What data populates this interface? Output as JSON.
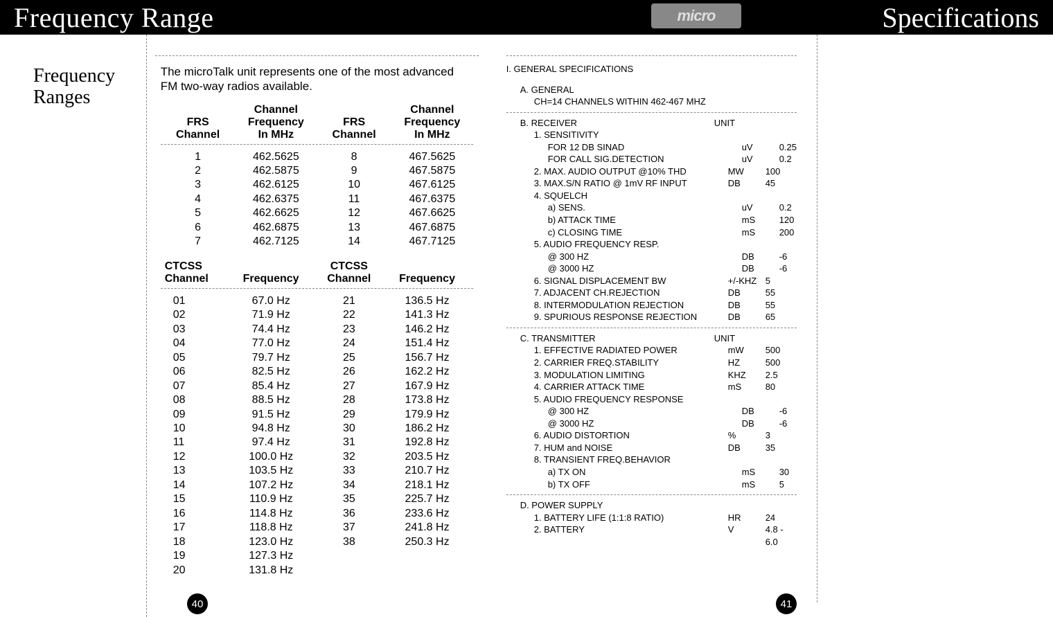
{
  "top": {
    "left_title": "Frequency Range",
    "right_title": "Specifications",
    "logo_text": "micro"
  },
  "left_heading": "Frequency\nRanges",
  "intro": "The microTalk unit represents one of the most advanced FM two-way radios available.",
  "frs_header": {
    "c1a": "FRS",
    "c1b": "Channel",
    "c2a": "Channel",
    "c2b": "Frequency",
    "c2c": "In MHz",
    "c3a": "FRS",
    "c3b": "Channel",
    "c4a": "Channel",
    "c4b": "Frequency",
    "c4c": "In MHz"
  },
  "frs_rows": [
    {
      "c1": "1",
      "c2": "462.5625",
      "c3": "8",
      "c4": "467.5625"
    },
    {
      "c1": "2",
      "c2": "462.5875",
      "c3": "9",
      "c4": "467.5875"
    },
    {
      "c1": "3",
      "c2": "462.6125",
      "c3": "10",
      "c4": "467.6125"
    },
    {
      "c1": "4",
      "c2": "462.6375",
      "c3": "11",
      "c4": "467.6375"
    },
    {
      "c1": "5",
      "c2": "462.6625",
      "c3": "12",
      "c4": "467.6625"
    },
    {
      "c1": "6",
      "c2": "462.6875",
      "c3": "13",
      "c4": "467.6875"
    },
    {
      "c1": "7",
      "c2": "462.7125",
      "c3": "14",
      "c4": "467.7125"
    }
  ],
  "ctcss_header": {
    "c1a": "CTCSS",
    "c1b": "Channel",
    "c2": "Frequency",
    "c3a": "CTCSS",
    "c3b": "Channel",
    "c4": "Frequency"
  },
  "ctcss_rows": [
    {
      "c1": "01",
      "c2": "67.0 Hz",
      "c3": "21",
      "c4": "136.5 Hz"
    },
    {
      "c1": "02",
      "c2": "71.9 Hz",
      "c3": "22",
      "c4": "141.3 Hz"
    },
    {
      "c1": "03",
      "c2": "74.4 Hz",
      "c3": "23",
      "c4": "146.2 Hz"
    },
    {
      "c1": "04",
      "c2": "77.0 Hz",
      "c3": "24",
      "c4": "151.4 Hz"
    },
    {
      "c1": "05",
      "c2": "79.7 Hz",
      "c3": "25",
      "c4": "156.7 Hz"
    },
    {
      "c1": "06",
      "c2": "82.5 Hz",
      "c3": "26",
      "c4": "162.2 Hz"
    },
    {
      "c1": "07",
      "c2": "85.4 Hz",
      "c3": "27",
      "c4": "167.9 Hz"
    },
    {
      "c1": "08",
      "c2": "88.5 Hz",
      "c3": "28",
      "c4": "173.8 Hz"
    },
    {
      "c1": "09",
      "c2": "91.5 Hz",
      "c3": "29",
      "c4": "179.9 Hz"
    },
    {
      "c1": "10",
      "c2": "94.8 Hz",
      "c3": "30",
      "c4": "186.2 Hz"
    },
    {
      "c1": "11",
      "c2": "97.4 Hz",
      "c3": "31",
      "c4": "192.8 Hz"
    },
    {
      "c1": "12",
      "c2": "100.0 Hz",
      "c3": "32",
      "c4": "203.5 Hz"
    },
    {
      "c1": "13",
      "c2": "103.5 Hz",
      "c3": "33",
      "c4": "210.7 Hz"
    },
    {
      "c1": "14",
      "c2": "107.2 Hz",
      "c3": "34",
      "c4": "218.1 Hz"
    },
    {
      "c1": "15",
      "c2": "110.9 Hz",
      "c3": "35",
      "c4": "225.7 Hz"
    },
    {
      "c1": "16",
      "c2": "114.8 Hz",
      "c3": "36",
      "c4": "233.6 Hz"
    },
    {
      "c1": "17",
      "c2": "118.8 Hz",
      "c3": "37",
      "c4": "241.8 Hz"
    },
    {
      "c1": "18",
      "c2": "123.0 Hz",
      "c3": "38",
      "c4": "250.3 Hz"
    },
    {
      "c1": "19",
      "c2": "127.3 Hz",
      "c3": "",
      "c4": ""
    },
    {
      "c1": "20",
      "c2": "131.8 Hz",
      "c3": "",
      "c4": ""
    }
  ],
  "specs": {
    "title": "I. GENERAL  SPECIFICATIONS",
    "A_title": "A. GENERAL",
    "A_line": "CH=14 CHANNELS WITHIN 462-467 MHZ",
    "B_title": "B. RECEIVER",
    "B_unit": "UNIT",
    "B_rows": [
      {
        "label": "1.  SENSITIVITY",
        "unit": "",
        "val": ""
      },
      {
        "label": "FOR 12 DB SINAD",
        "unit": "uV",
        "val": "0.25",
        "sub": true
      },
      {
        "label": "FOR CALL SIG.DETECTION",
        "unit": "uV",
        "val": "0.2",
        "sub": true
      },
      {
        "label": "2.  MAX. AUDIO OUTPUT @10% THD",
        "unit": "MW",
        "val": "100"
      },
      {
        "label": "3.  MAX.S/N  RATIO @ 1mV RF INPUT",
        "unit": "DB",
        "val": "45"
      },
      {
        "label": "4.  SQUELCH",
        "unit": "",
        "val": ""
      },
      {
        "label": "a) SENS.",
        "unit": "uV",
        "val": "0.2",
        "sub": true
      },
      {
        "label": "b) ATTACK TIME",
        "unit": "mS",
        "val": "120",
        "sub": true
      },
      {
        "label": "c) CLOSING TIME",
        "unit": "mS",
        "val": "200",
        "sub": true
      },
      {
        "label": "5.  AUDIO FREQUENCY RESP.",
        "unit": "",
        "val": ""
      },
      {
        "label": "@ 300 HZ",
        "unit": "DB",
        "val": "-6",
        "sub": true
      },
      {
        "label": "@ 3000 HZ",
        "unit": "DB",
        "val": "-6",
        "sub": true
      },
      {
        "label": "6.  SIGNAL DISPLACEMENT BW",
        "unit": "+/-KHZ",
        "val": "5"
      },
      {
        "label": "7.  ADJACENT CH.REJECTION",
        "unit": "DB",
        "val": "55"
      },
      {
        "label": "8.  INTERMODULATION REJECTION",
        "unit": "DB",
        "val": "55"
      },
      {
        "label": "9.  SPURIOUS RESPONSE REJECTION",
        "unit": "DB",
        "val": "65"
      }
    ],
    "C_title": "C. TRANSMITTER",
    "C_unit": "UNIT",
    "C_rows": [
      {
        "label": "1.   EFFECTIVE RADIATED POWER",
        "unit": "mW",
        "val": "500"
      },
      {
        "label": "2.   CARRIER FREQ.STABILITY",
        "unit": "HZ",
        "val": "500"
      },
      {
        "label": "3.   MODULATION LIMITING",
        "unit": "KHZ",
        "val": "2.5"
      },
      {
        "label": "4.   CARRIER ATTACK TIME",
        "unit": "mS",
        "val": "80"
      },
      {
        "label": "5.   AUDIO FREQUENCY RESPONSE",
        "unit": "",
        "val": ""
      },
      {
        "label": "@ 300 HZ",
        "unit": "DB",
        "val": "-6",
        "sub": true
      },
      {
        "label": "@ 3000 HZ",
        "unit": "DB",
        "val": "-6",
        "sub": true
      },
      {
        "label": "6.    AUDIO DISTORTION",
        "unit": "%",
        "val": "3"
      },
      {
        "label": "7.   HUM and NOISE",
        "unit": "DB",
        "val": "35"
      },
      {
        "label": "8.   TRANSIENT FREQ.BEHAVIOR",
        "unit": "",
        "val": ""
      },
      {
        "label": "a) TX ON",
        "unit": "mS",
        "val": "30",
        "sub": true
      },
      {
        "label": "b) TX OFF",
        "unit": "mS",
        "val": "5",
        "sub": true
      }
    ],
    "D_title": "D. POWER SUPPLY",
    "D_rows": [
      {
        "label": "1. BATTERY LIFE (1:1:8 RATIO)",
        "unit": "HR",
        "val": "24"
      },
      {
        "label": "2. BATTERY",
        "unit": "V",
        "val": "4.8 - 6.0"
      }
    ]
  },
  "page_left": "40",
  "page_right": "41"
}
